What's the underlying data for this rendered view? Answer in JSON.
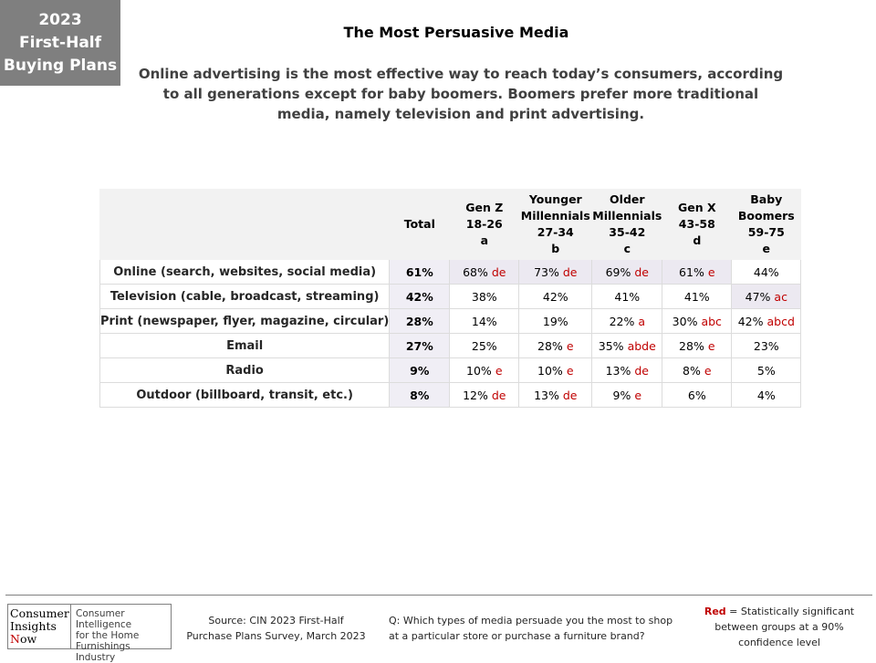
{
  "badge": {
    "lines": [
      "2023",
      "First-Half",
      "Buying Plans"
    ]
  },
  "title": "The Most Persuasive Media",
  "subtitle": "Online advertising is the most effective way to reach today’s consumers, according to all generations except for baby boomers. Boomers prefer more traditional media, namely television and print advertising.",
  "table": {
    "columns": [
      {
        "lines": [
          "Total"
        ]
      },
      {
        "lines": [
          "Gen Z",
          "18-26",
          "a"
        ]
      },
      {
        "lines": [
          "Younger",
          "Millennials",
          "27-34",
          "b"
        ]
      },
      {
        "lines": [
          "Older",
          "Millennials",
          "35-42",
          "c"
        ]
      },
      {
        "lines": [
          "Gen X",
          "43-58",
          "d"
        ]
      },
      {
        "lines": [
          "Baby",
          "Boomers",
          "59-75",
          "e"
        ]
      }
    ],
    "rows": [
      {
        "label": "Online (search, websites, social media)",
        "total": "61%",
        "cells": [
          {
            "value": "68%",
            "sig": "de",
            "shade": true
          },
          {
            "value": "73%",
            "sig": "de",
            "shade": true
          },
          {
            "value": "69%",
            "sig": "de",
            "shade": true
          },
          {
            "value": "61%",
            "sig": "e",
            "shade": true
          },
          {
            "value": "44%",
            "sig": "",
            "shade": false
          }
        ]
      },
      {
        "label": "Television (cable, broadcast, streaming)",
        "total": "42%",
        "cells": [
          {
            "value": "38%",
            "sig": "",
            "shade": false
          },
          {
            "value": "42%",
            "sig": "",
            "shade": false
          },
          {
            "value": "41%",
            "sig": "",
            "shade": false
          },
          {
            "value": "41%",
            "sig": "",
            "shade": false
          },
          {
            "value": "47%",
            "sig": "ac",
            "shade": true
          }
        ]
      },
      {
        "label": "Print (newspaper, flyer, magazine, circular)",
        "total": "28%",
        "cells": [
          {
            "value": "14%",
            "sig": "",
            "shade": false
          },
          {
            "value": "19%",
            "sig": "",
            "shade": false
          },
          {
            "value": "22%",
            "sig": "a",
            "shade": false
          },
          {
            "value": "30%",
            "sig": "abc",
            "shade": false
          },
          {
            "value": "42%",
            "sig": "abcd",
            "shade": false
          }
        ]
      },
      {
        "label": "Email",
        "total": "27%",
        "cells": [
          {
            "value": "25%",
            "sig": "",
            "shade": false
          },
          {
            "value": "28%",
            "sig": "e",
            "shade": false
          },
          {
            "value": "35%",
            "sig": "abde",
            "shade": false
          },
          {
            "value": "28%",
            "sig": "e",
            "shade": false
          },
          {
            "value": "23%",
            "sig": "",
            "shade": false
          }
        ]
      },
      {
        "label": "Radio",
        "total": "9%",
        "cells": [
          {
            "value": "10%",
            "sig": "e",
            "shade": false
          },
          {
            "value": "10%",
            "sig": "e",
            "shade": false
          },
          {
            "value": "13%",
            "sig": "de",
            "shade": false
          },
          {
            "value": "8%",
            "sig": "e",
            "shade": false
          },
          {
            "value": "5%",
            "sig": "",
            "shade": false
          }
        ]
      },
      {
        "label": "Outdoor (billboard, transit, etc.)",
        "total": "8%",
        "cells": [
          {
            "value": "12%",
            "sig": "de",
            "shade": false
          },
          {
            "value": "13%",
            "sig": "de",
            "shade": false
          },
          {
            "value": "9%",
            "sig": "e",
            "shade": false
          },
          {
            "value": "6%",
            "sig": "",
            "shade": false
          },
          {
            "value": "4%",
            "sig": "",
            "shade": false
          }
        ]
      }
    ]
  },
  "footer": {
    "logo": {
      "left_lines": [
        "Consumer",
        "Insights"
      ],
      "now_initial": "N",
      "now_rest": "ow",
      "right_lines": [
        "Consumer Intelligence",
        "for the Home",
        "Furnishings Industry"
      ]
    },
    "source_lines": [
      "Source:  CIN 2023 First-Half",
      "Purchase Plans Survey, March 2023"
    ],
    "question_lines": [
      "Q: Which types of media persuade you the  most to shop",
      "at a particular store or purchase a furniture brand?"
    ],
    "legend": {
      "red_word": "Red",
      "line1_rest": " = Statistically significant",
      "line2": "between  groups at a 90%",
      "line3": "confidence level"
    },
    "colors": {
      "significance_red": "#c00000",
      "badge_gray": "#7f7f7f"
    }
  }
}
